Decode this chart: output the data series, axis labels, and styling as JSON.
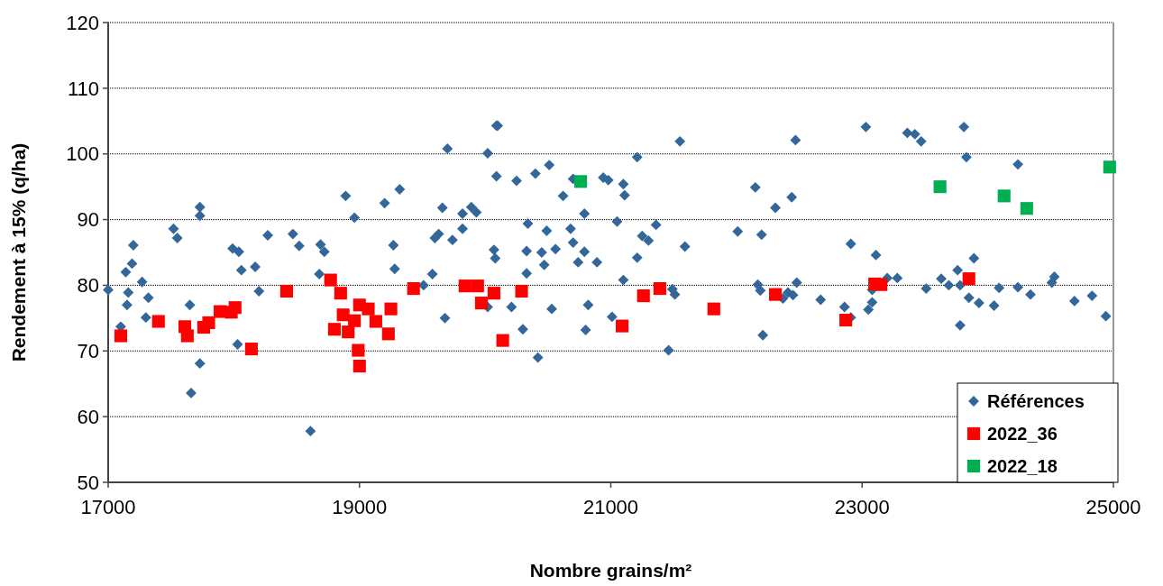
{
  "chart_data": {
    "type": "scatter",
    "xlabel": "Nombre grains/m²",
    "ylabel": "Rendement à 15% (q/ha)",
    "xlim": [
      17000,
      25000
    ],
    "xticks": [
      17000,
      19000,
      21000,
      23000,
      25000
    ],
    "ylim": [
      50,
      120
    ],
    "yticks": [
      50,
      60,
      70,
      80,
      90,
      100,
      110,
      120
    ],
    "grid": "y",
    "legend": "bottom right",
    "series": [
      {
        "name": "Références",
        "color": "#336699",
        "marker": "diamond",
        "x": [
          17000,
          17100,
          17140,
          17160,
          17150,
          17190,
          17200,
          17270,
          17320,
          17300,
          17520,
          17550,
          17650,
          17660,
          17730,
          17730,
          17730,
          17990,
          18040,
          18060,
          18030,
          18170,
          18200,
          18270,
          18470,
          18520,
          18890,
          18960,
          18690,
          18720,
          18680,
          18610,
          19200,
          19320,
          19270,
          19280,
          19510,
          19580,
          19680,
          19600,
          19630,
          19660,
          19740,
          19820,
          19820,
          19890,
          19930,
          19700,
          20020,
          20090,
          20100,
          20090,
          20020,
          20070,
          20080,
          20210,
          20300,
          20250,
          20400,
          20510,
          20420,
          20340,
          20330,
          20330,
          20450,
          20470,
          20490,
          20560,
          20530,
          20620,
          20680,
          20700,
          20700,
          20790,
          20790,
          20740,
          20890,
          20820,
          20800,
          20940,
          20980,
          21100,
          21110,
          21050,
          21010,
          21100,
          21210,
          21550,
          21250,
          21300,
          21360,
          21210,
          21590,
          21490,
          21510,
          21460,
          22010,
          22150,
          22200,
          22310,
          22440,
          22470,
          23030,
          22170,
          22190,
          22210,
          22370,
          22410,
          22450,
          22480,
          22670,
          22860,
          22910,
          22910,
          23110,
          23050,
          23080,
          23080,
          23360,
          23420,
          23470,
          23810,
          23830,
          24240,
          23890,
          23760,
          23200,
          23280,
          23510,
          23630,
          23690,
          23780,
          23850,
          23930,
          23780,
          24050,
          24090,
          24240,
          24340,
          24510,
          24530,
          24690,
          24830,
          24940
        ],
        "values": [
          79.3,
          73.7,
          82.0,
          78.9,
          77.0,
          83.3,
          86.1,
          80.5,
          78.1,
          75.1,
          88.6,
          87.2,
          77.0,
          63.6,
          91.9,
          90.6,
          68.1,
          85.6,
          85.1,
          82.3,
          71.0,
          82.8,
          79.1,
          87.6,
          87.8,
          86.0,
          93.6,
          90.3,
          86.2,
          85.1,
          81.7,
          57.8,
          92.5,
          94.6,
          86.1,
          82.5,
          80.0,
          81.7,
          75.0,
          87.2,
          87.8,
          91.8,
          86.9,
          88.6,
          90.9,
          91.9,
          91.1,
          100.8,
          100.1,
          104.3,
          104.3,
          96.6,
          76.7,
          85.4,
          84.1,
          76.7,
          73.3,
          95.9,
          97.0,
          98.3,
          69.0,
          89.4,
          85.2,
          81.8,
          85.0,
          83.1,
          88.3,
          85.5,
          76.4,
          93.6,
          88.6,
          86.5,
          96.2,
          90.9,
          85.1,
          83.5,
          83.5,
          77.0,
          73.2,
          96.4,
          96.0,
          95.4,
          93.7,
          89.7,
          75.2,
          80.8,
          99.5,
          101.9,
          87.5,
          86.8,
          89.2,
          84.2,
          85.9,
          79.4,
          78.6,
          70.1,
          88.2,
          94.9,
          87.7,
          91.8,
          93.4,
          102.1,
          104.1,
          80.1,
          79.2,
          72.4,
          78.0,
          78.9,
          78.5,
          80.4,
          77.8,
          76.7,
          75.1,
          86.3,
          84.6,
          76.3,
          77.4,
          79.3,
          103.2,
          103.0,
          101.9,
          104.1,
          99.5,
          98.4,
          84.1,
          82.3,
          81.1,
          81.1,
          79.5,
          81.0,
          80.0,
          80.0,
          78.1,
          77.3,
          73.9,
          76.9,
          79.6,
          79.7,
          78.6,
          80.4,
          81.3,
          77.6,
          78.4,
          75.3
        ]
      },
      {
        "name": "2022_36",
        "color": "#ff0000",
        "marker": "square",
        "x": [
          17100,
          17400,
          17610,
          17630,
          17760,
          17800,
          17890,
          17980,
          18010,
          18140,
          18420,
          18770,
          18850,
          18870,
          18800,
          18910,
          18960,
          19070,
          18990,
          19000,
          19000,
          19130,
          19250,
          19230,
          19430,
          19840,
          19940,
          19970,
          20070,
          20140,
          20290,
          21090,
          21260,
          21390,
          21820,
          22310,
          22870,
          23100,
          23150,
          23850
        ],
        "values": [
          72.3,
          74.5,
          73.7,
          72.3,
          73.6,
          74.3,
          76.0,
          75.9,
          76.6,
          70.3,
          79.1,
          80.8,
          78.8,
          75.5,
          73.3,
          72.9,
          74.6,
          76.4,
          70.1,
          67.7,
          77.0,
          74.5,
          76.4,
          72.6,
          79.5,
          79.9,
          79.9,
          77.3,
          78.8,
          71.6,
          79.1,
          73.8,
          78.4,
          79.5,
          76.4,
          78.6,
          74.7,
          80.2,
          80.1,
          81.0
        ]
      },
      {
        "name": "2022_18",
        "color": "#00b050",
        "marker": "square",
        "x": [
          20760,
          23620,
          24130,
          24310,
          24970
        ],
        "values": [
          95.8,
          95.0,
          93.6,
          91.7,
          98.0
        ]
      }
    ]
  }
}
